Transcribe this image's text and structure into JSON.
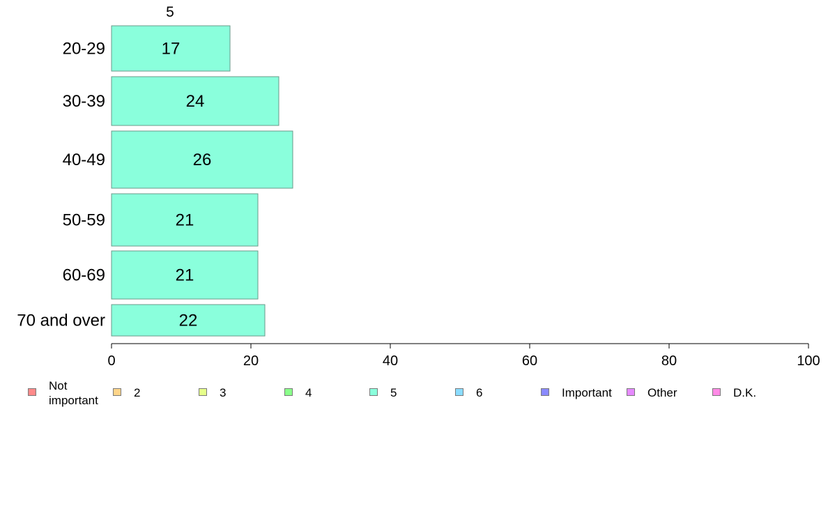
{
  "chart_data": {
    "type": "bar",
    "orientation": "horizontal",
    "series_label": "5",
    "categories": [
      "20-29",
      "30-39",
      "40-49",
      "50-59",
      "60-69",
      "70 and over"
    ],
    "series": [
      {
        "name": "5",
        "values": [
          17,
          24,
          26,
          21,
          21,
          22
        ]
      }
    ],
    "data_labels": [
      "17",
      "24",
      "26",
      "21",
      "21",
      "22"
    ],
    "xlim": [
      0,
      100
    ],
    "x_ticks": [
      0,
      20,
      40,
      60,
      80,
      100
    ],
    "x_tick_labels": [
      "0",
      "20",
      "40",
      "60",
      "80",
      "100"
    ],
    "bar_color": "#8affdc",
    "bar_edge_color": "#6a9a8a",
    "legend": [
      {
        "label": "Not important",
        "color": "#ff8a8a"
      },
      {
        "label": "2",
        "color": "#ffd58a"
      },
      {
        "label": "3",
        "color": "#e6ff8a"
      },
      {
        "label": "4",
        "color": "#8aff8a"
      },
      {
        "label": "5",
        "color": "#8affdc"
      },
      {
        "label": "6",
        "color": "#8adcff"
      },
      {
        "label": "Important",
        "color": "#8a8aff"
      },
      {
        "label": "Other",
        "color": "#e68aff"
      },
      {
        "label": "D.K.",
        "color": "#ff8ae6"
      }
    ],
    "legend_position": "bottom",
    "grid": false
  }
}
